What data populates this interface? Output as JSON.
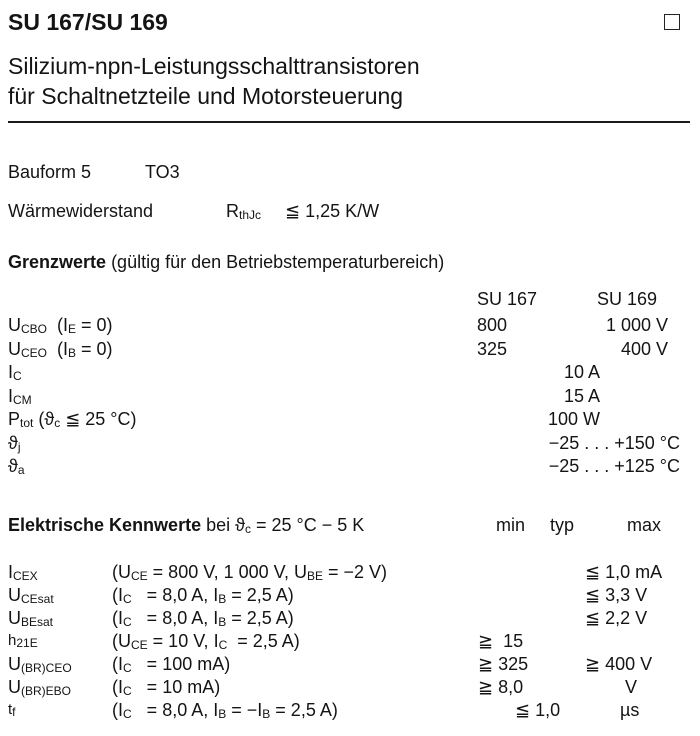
{
  "header": {
    "title": "SU 167/SU 169",
    "subtitle_line1": "Silizium-npn-Leistungsschalttransistoren",
    "subtitle_line2": "für Schaltnetzteile und Motorsteuerung"
  },
  "package": {
    "label": "Bauform 5",
    "value": "TO3"
  },
  "thermal": {
    "label": "Wärmewiderstand",
    "symbol": "R",
    "symbol_sub": "thJc",
    "value": "≦ 1,25 K/W"
  },
  "limits": {
    "heading": "Grenzwerte",
    "heading_note": "(gültig für den Betriebstemperaturbereich)",
    "col1": "SU 167",
    "col2": "SU 169",
    "rows": [
      {
        "sym": "U",
        "sub": "CBO",
        "cond": "(I",
        "cond_sub": "E",
        "cond_rest": " = 0)",
        "v1": "800",
        "v2": "1 000 V"
      },
      {
        "sym": "U",
        "sub": "CEO",
        "cond": "(I",
        "cond_sub": "B",
        "cond_rest": " = 0)",
        "v1": "325",
        "v2": "400 V"
      },
      {
        "sym": "I",
        "sub": "C",
        "v": "10 A"
      },
      {
        "sym": "I",
        "sub": "CM",
        "v": "15 A"
      },
      {
        "sym": "P",
        "sub": "tot",
        "cond": " (ϑ",
        "cond_sub": "c",
        "cond_rest": " ≦ 25 °C)",
        "v": "100 W"
      },
      {
        "sym": "ϑ",
        "sub": "j",
        "v": "−25 . . . +150 °C"
      },
      {
        "sym": "ϑ",
        "sub": "a",
        "v": "−25 . . . +125 °C"
      }
    ]
  },
  "electrical": {
    "heading": "Elektrische Kennwerte",
    "heading_note": "bei ϑ",
    "heading_sub": "c",
    "heading_rest": " = 25 °C − 5 K",
    "col_min": "min",
    "col_typ": "typ",
    "col_max": "max",
    "rows": [
      {
        "sym": "I",
        "sub": "CEX",
        "cond": "(U<sub>CE</sub> = 800 V, 1 000 V, U<sub>BE</sub> = −2 V)",
        "min": "",
        "max": "≦ 1,0 mA"
      },
      {
        "sym": "U",
        "sub": "CEsat",
        "cond": "(I<sub>C</sub> &nbsp; = 8,0 A, I<sub>B</sub> = 2,5 A)",
        "min": "",
        "max": "≦ 3,3 V"
      },
      {
        "sym": "U",
        "sub": "BEsat",
        "cond": "(I<sub>C</sub> &nbsp; = 8,0 A, I<sub>B</sub> = 2,5 A)",
        "min": "",
        "max": "≦ 2,2 V"
      },
      {
        "sym": "h",
        "sub": "21E",
        "cond": "(U<sub>CE</sub> = 10 V, I<sub>C</sub> &nbsp;= 2,5 A)",
        "min": "≧ &nbsp;15",
        "max": ""
      },
      {
        "sym": "U",
        "sub": "(BR)CEO",
        "cond": "(I<sub>C</sub> &nbsp; = 100 mA)",
        "min": "≧ 325",
        "max": "≧ 400 V"
      },
      {
        "sym": "U",
        "sub": "(BR)EBO",
        "cond": "(I<sub>C</sub> &nbsp; = 10 mA)",
        "min": "≧ 8,0",
        "max": "&nbsp; &nbsp; &nbsp; &nbsp; V"
      },
      {
        "sym": "t",
        "sub": "f",
        "cond": "(I<sub>C</sub> &nbsp; = 8,0 A, I<sub>B</sub> = −I<sub>B</sub> = 2,5 A)",
        "typ": "≦ 1,0",
        "max": "&nbsp; &nbsp; &nbsp; &nbsp;µs"
      }
    ]
  }
}
